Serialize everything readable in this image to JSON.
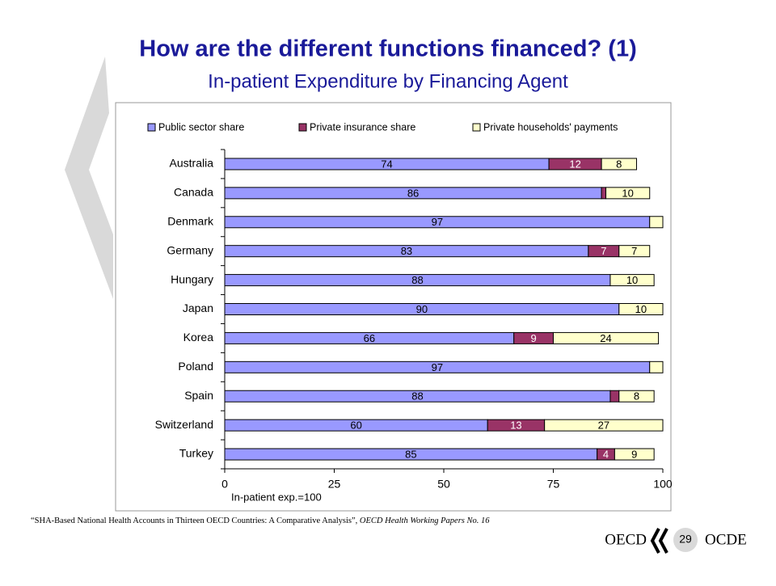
{
  "page": {
    "title": "How are the different functions financed? (1)",
    "subtitle": "In-patient Expenditure by Financing Agent",
    "footnote": [
      "“SHA-Based National Health Accounts in Thirteen OECD Countries: A Comparative Analysis”, ",
      "OECD Health Working Papers No. 16"
    ],
    "logo_left": "OECD",
    "logo_right": "OCDE",
    "page_number": "29"
  },
  "chart_data": {
    "type": "stacked-bar-horizontal",
    "categories": [
      "Australia",
      "Canada",
      "Denmark",
      "Germany",
      "Hungary",
      "Japan",
      "Korea",
      "Poland",
      "Spain",
      "Switzerland",
      "Turkey"
    ],
    "series": [
      {
        "name": "Public sector share",
        "color": "#9999ff",
        "values": [
          74,
          86,
          97,
          83,
          88,
          90,
          66,
          97,
          88,
          60,
          85
        ],
        "value_labels": [
          "74",
          "86",
          "97",
          "83",
          "88",
          "90",
          "66",
          "97",
          "88",
          "60",
          "85"
        ]
      },
      {
        "name": "Private insurance share",
        "color": "#993366",
        "values": [
          12,
          1,
          0,
          7,
          0,
          0,
          9,
          0,
          2,
          13,
          4
        ],
        "value_labels": [
          "12",
          null,
          null,
          "7",
          null,
          null,
          "9",
          null,
          null,
          "13",
          "4"
        ]
      },
      {
        "name": "Private households' payments",
        "color": "#ffffcc",
        "values": [
          8,
          10,
          3,
          7,
          10,
          10,
          24,
          3,
          8,
          27,
          9
        ],
        "value_labels": [
          "8",
          "10",
          null,
          "7",
          "10",
          "10",
          "24",
          null,
          "8",
          "27",
          "9"
        ]
      }
    ],
    "xlim": [
      0,
      100
    ],
    "xticks": [
      0,
      25,
      50,
      75,
      100
    ],
    "xlabel": "In-patient exp.=100",
    "legend": "top"
  }
}
